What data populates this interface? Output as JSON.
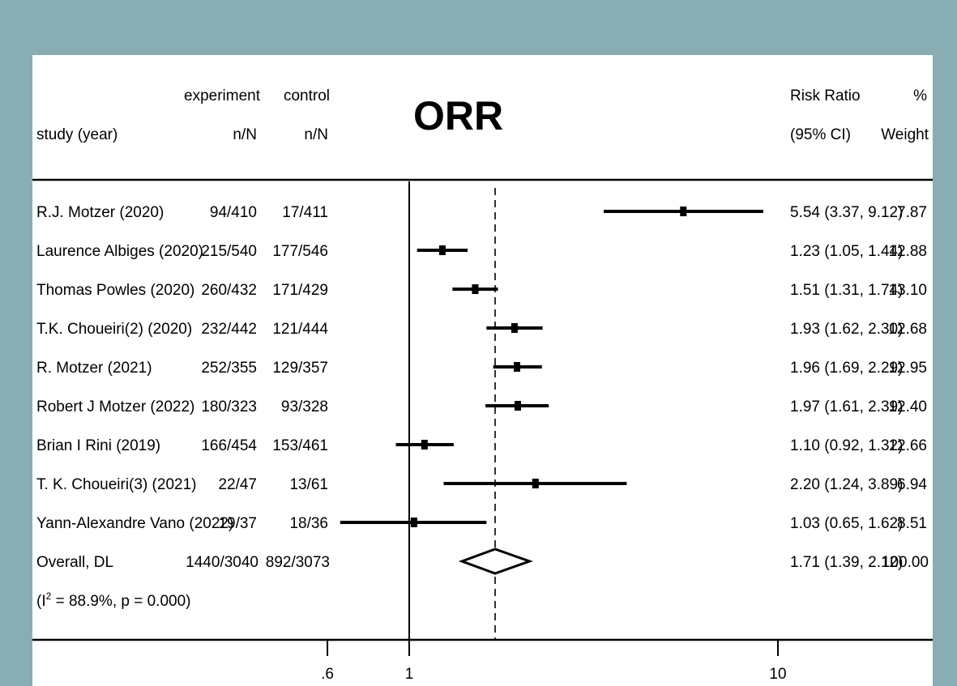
{
  "headers": {
    "study_line2": "study (year)",
    "experiment_line1": "experiment",
    "experiment_line2": "n/N",
    "control_line1": "control",
    "control_line2": "n/N",
    "rr_line1": "Risk Ratio",
    "rr_line2": "(95% CI)",
    "weight_line1": "%",
    "weight_line2": "Weight"
  },
  "chart_data": {
    "type": "forest",
    "title": "ORR",
    "x_scale": "log",
    "x_ticks": [
      {
        "value": 0.6,
        "label": ".6"
      },
      {
        "value": 1,
        "label": "1"
      },
      {
        "value": 10,
        "label": "10"
      }
    ],
    "null_line": 1,
    "overall_line": 1.71,
    "studies": [
      {
        "study": "R.J. Motzer   (2020)",
        "experiment": "94/410",
        "control": "17/411",
        "rr": 5.54,
        "lo": 3.37,
        "hi": 9.12,
        "ci_text": "5.54 (3.37, 9.12)",
        "weight": "7.87"
      },
      {
        "study": "Laurence Albiges (2020)",
        "experiment": "215/540",
        "control": "177/546",
        "rr": 1.23,
        "lo": 1.05,
        "hi": 1.44,
        "ci_text": "1.23 (1.05, 1.44)",
        "weight": "12.88"
      },
      {
        "study": "Thomas Powles   (2020)",
        "experiment": "260/432",
        "control": "171/429",
        "rr": 1.51,
        "lo": 1.31,
        "hi": 1.74,
        "ci_text": "1.51 (1.31, 1.74)",
        "weight": "13.10"
      },
      {
        "study": "T.K. Choueiri(2) (2020)",
        "experiment": "232/442",
        "control": "121/444",
        "rr": 1.93,
        "lo": 1.62,
        "hi": 2.3,
        "ci_text": "1.93 (1.62, 2.30)",
        "weight": "12.68"
      },
      {
        "study": "R. Motzer (2021)",
        "experiment": "252/355",
        "control": "129/357",
        "rr": 1.96,
        "lo": 1.69,
        "hi": 2.29,
        "ci_text": "1.96 (1.69, 2.29)",
        "weight": "12.95"
      },
      {
        "study": "Robert J Motzer (2022)",
        "experiment": "180/323",
        "control": "93/328",
        "rr": 1.97,
        "lo": 1.61,
        "hi": 2.39,
        "ci_text": "1.97 (1.61, 2.39)",
        "weight": "12.40"
      },
      {
        "study": "Brian I Rini (2019)",
        "experiment": "166/454",
        "control": "153/461",
        "rr": 1.1,
        "lo": 0.92,
        "hi": 1.32,
        "ci_text": "1.10 (0.92, 1.32)",
        "weight": "12.66"
      },
      {
        "study": "T. K. Choueiri(3) (2021)",
        "experiment": "22/47",
        "control": "13/61",
        "rr": 2.2,
        "lo": 1.24,
        "hi": 3.89,
        "ci_text": "2.20 (1.24, 3.89)",
        "weight": "6.94"
      },
      {
        "study": "Yann-Alexandre Vano (2022)",
        "experiment": "19/37",
        "control": "18/36",
        "rr": 1.03,
        "lo": 0.65,
        "hi": 1.62,
        "ci_text": "1.03 (0.65, 1.62)",
        "weight": "8.51"
      }
    ],
    "overall": {
      "label": "Overall, DL",
      "experiment": "1440/3040",
      "control": "892/3073",
      "rr": 1.71,
      "lo": 1.39,
      "hi": 2.12,
      "ci_text": "1.71 (1.39, 2.12)",
      "weight": "100.00"
    },
    "heterogeneity": {
      "prefix": "(I",
      "superscript": "2",
      "suffix": " = 88.9%, p = 0.000)"
    }
  }
}
